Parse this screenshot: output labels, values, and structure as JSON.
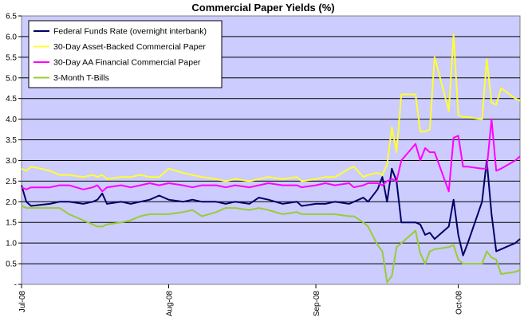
{
  "chart_data": {
    "type": "line",
    "title": "Commercial Paper Yields (%)",
    "xlabel": "",
    "ylabel": "",
    "ylim": [
      0,
      6.5
    ],
    "yticks": [
      0,
      0.5,
      1.0,
      1.5,
      2.0,
      2.5,
      3.0,
      3.5,
      4.0,
      4.5,
      5.0,
      5.5,
      6.0,
      6.5
    ],
    "ytick_labels": [
      "-",
      "0.5",
      "1.0",
      "1.5",
      "2.0",
      "2.5",
      "3.0",
      "3.5",
      "4.0",
      "4.5",
      "5.0",
      "5.5",
      "6.0",
      "6.5"
    ],
    "xticks": [
      {
        "date": "2008-07-01",
        "label": "Jul-08"
      },
      {
        "date": "2008-08-01",
        "label": "Aug-08"
      },
      {
        "date": "2008-09-01",
        "label": "Sep-08"
      },
      {
        "date": "2008-10-01",
        "label": "Oct-08"
      }
    ],
    "xlim": [
      "2008-07-01",
      "2008-10-14"
    ],
    "grid": "horizontal",
    "legend_position": "top-left",
    "plot_background": "#ccccff",
    "series": [
      {
        "name": "Federal Funds Rate (overnight interbank)",
        "color": "#000066",
        "points": [
          [
            "2008-07-01",
            2.4
          ],
          [
            "2008-07-02",
            2.0
          ],
          [
            "2008-07-03",
            1.9
          ],
          [
            "2008-07-07",
            1.95
          ],
          [
            "2008-07-09",
            2.0
          ],
          [
            "2008-07-11",
            2.0
          ],
          [
            "2008-07-14",
            1.95
          ],
          [
            "2008-07-16",
            2.0
          ],
          [
            "2008-07-17",
            2.05
          ],
          [
            "2008-07-18",
            2.2
          ],
          [
            "2008-07-19",
            1.95
          ],
          [
            "2008-07-22",
            2.0
          ],
          [
            "2008-07-24",
            1.95
          ],
          [
            "2008-07-26",
            2.0
          ],
          [
            "2008-07-28",
            2.05
          ],
          [
            "2008-07-30",
            2.15
          ],
          [
            "2008-08-01",
            2.05
          ],
          [
            "2008-08-04",
            2.0
          ],
          [
            "2008-08-06",
            2.05
          ],
          [
            "2008-08-08",
            2.0
          ],
          [
            "2008-08-11",
            2.0
          ],
          [
            "2008-08-13",
            1.95
          ],
          [
            "2008-08-15",
            2.0
          ],
          [
            "2008-08-18",
            1.95
          ],
          [
            "2008-08-20",
            2.1
          ],
          [
            "2008-08-22",
            2.05
          ],
          [
            "2008-08-25",
            1.95
          ],
          [
            "2008-08-28",
            2.0
          ],
          [
            "2008-08-29",
            1.9
          ],
          [
            "2008-09-01",
            1.95
          ],
          [
            "2008-09-03",
            1.95
          ],
          [
            "2008-09-05",
            2.0
          ],
          [
            "2008-09-08",
            1.95
          ],
          [
            "2008-09-09",
            2.0
          ],
          [
            "2008-09-11",
            2.1
          ],
          [
            "2008-09-12",
            2.0
          ],
          [
            "2008-09-14",
            2.3
          ],
          [
            "2008-09-15",
            2.6
          ],
          [
            "2008-09-16",
            2.0
          ],
          [
            "2008-09-17",
            2.8
          ],
          [
            "2008-09-18",
            2.5
          ],
          [
            "2008-09-19",
            1.5
          ],
          [
            "2008-09-22",
            1.5
          ],
          [
            "2008-09-23",
            1.45
          ],
          [
            "2008-09-24",
            1.2
          ],
          [
            "2008-09-25",
            1.25
          ],
          [
            "2008-09-26",
            1.1
          ],
          [
            "2008-09-29",
            1.4
          ],
          [
            "2008-09-30",
            2.05
          ],
          [
            "2008-10-01",
            1.2
          ],
          [
            "2008-10-02",
            0.7
          ],
          [
            "2008-10-03",
            1.0
          ],
          [
            "2008-10-06",
            2.0
          ],
          [
            "2008-10-07",
            3.0
          ],
          [
            "2008-10-08",
            1.7
          ],
          [
            "2008-10-09",
            0.8
          ],
          [
            "2008-10-10",
            0.85
          ],
          [
            "2008-10-13",
            1.0
          ],
          [
            "2008-10-14",
            1.1
          ]
        ]
      },
      {
        "name": "30-Day Asset-Backed Commercial Paper",
        "color": "#ffff33",
        "points": [
          [
            "2008-07-01",
            2.8
          ],
          [
            "2008-07-02",
            2.75
          ],
          [
            "2008-07-03",
            2.85
          ],
          [
            "2008-07-07",
            2.75
          ],
          [
            "2008-07-09",
            2.65
          ],
          [
            "2008-07-11",
            2.65
          ],
          [
            "2008-07-14",
            2.6
          ],
          [
            "2008-07-16",
            2.65
          ],
          [
            "2008-07-17",
            2.6
          ],
          [
            "2008-07-18",
            2.65
          ],
          [
            "2008-07-19",
            2.55
          ],
          [
            "2008-07-22",
            2.6
          ],
          [
            "2008-07-24",
            2.6
          ],
          [
            "2008-07-26",
            2.65
          ],
          [
            "2008-07-28",
            2.6
          ],
          [
            "2008-07-30",
            2.6
          ],
          [
            "2008-08-01",
            2.8
          ],
          [
            "2008-08-04",
            2.7
          ],
          [
            "2008-08-06",
            2.65
          ],
          [
            "2008-08-08",
            2.6
          ],
          [
            "2008-08-11",
            2.55
          ],
          [
            "2008-08-13",
            2.5
          ],
          [
            "2008-08-15",
            2.55
          ],
          [
            "2008-08-18",
            2.5
          ],
          [
            "2008-08-20",
            2.55
          ],
          [
            "2008-08-22",
            2.6
          ],
          [
            "2008-08-25",
            2.55
          ],
          [
            "2008-08-28",
            2.6
          ],
          [
            "2008-08-29",
            2.5
          ],
          [
            "2008-09-01",
            2.55
          ],
          [
            "2008-09-03",
            2.6
          ],
          [
            "2008-09-05",
            2.6
          ],
          [
            "2008-09-08",
            2.8
          ],
          [
            "2008-09-09",
            2.85
          ],
          [
            "2008-09-11",
            2.6
          ],
          [
            "2008-09-12",
            2.65
          ],
          [
            "2008-09-14",
            2.7
          ],
          [
            "2008-09-15",
            2.65
          ],
          [
            "2008-09-16",
            2.9
          ],
          [
            "2008-09-17",
            3.8
          ],
          [
            "2008-09-18",
            3.2
          ],
          [
            "2008-09-19",
            4.6
          ],
          [
            "2008-09-22",
            4.6
          ],
          [
            "2008-09-23",
            3.7
          ],
          [
            "2008-09-24",
            3.7
          ],
          [
            "2008-09-25",
            3.75
          ],
          [
            "2008-09-26",
            5.5
          ],
          [
            "2008-09-29",
            4.2
          ],
          [
            "2008-09-30",
            6.05
          ],
          [
            "2008-10-01",
            4.1
          ],
          [
            "2008-10-02",
            4.05
          ],
          [
            "2008-10-03",
            4.05
          ],
          [
            "2008-10-06",
            4.0
          ],
          [
            "2008-10-07",
            5.45
          ],
          [
            "2008-10-08",
            4.4
          ],
          [
            "2008-10-09",
            4.35
          ],
          [
            "2008-10-10",
            4.75
          ],
          [
            "2008-10-13",
            4.5
          ],
          [
            "2008-10-14",
            4.45
          ]
        ]
      },
      {
        "name": "30-Day AA Financial Commercial Paper",
        "color": "#ff00ff",
        "points": [
          [
            "2008-07-01",
            2.35
          ],
          [
            "2008-07-02",
            2.3
          ],
          [
            "2008-07-03",
            2.35
          ],
          [
            "2008-07-07",
            2.35
          ],
          [
            "2008-07-09",
            2.4
          ],
          [
            "2008-07-11",
            2.4
          ],
          [
            "2008-07-14",
            2.3
          ],
          [
            "2008-07-16",
            2.35
          ],
          [
            "2008-07-17",
            2.4
          ],
          [
            "2008-07-18",
            2.25
          ],
          [
            "2008-07-19",
            2.35
          ],
          [
            "2008-07-22",
            2.4
          ],
          [
            "2008-07-24",
            2.35
          ],
          [
            "2008-07-26",
            2.4
          ],
          [
            "2008-07-28",
            2.45
          ],
          [
            "2008-07-30",
            2.4
          ],
          [
            "2008-08-01",
            2.45
          ],
          [
            "2008-08-04",
            2.4
          ],
          [
            "2008-08-06",
            2.35
          ],
          [
            "2008-08-08",
            2.4
          ],
          [
            "2008-08-11",
            2.4
          ],
          [
            "2008-08-13",
            2.35
          ],
          [
            "2008-08-15",
            2.4
          ],
          [
            "2008-08-18",
            2.35
          ],
          [
            "2008-08-20",
            2.4
          ],
          [
            "2008-08-22",
            2.45
          ],
          [
            "2008-08-25",
            2.4
          ],
          [
            "2008-08-28",
            2.4
          ],
          [
            "2008-08-29",
            2.35
          ],
          [
            "2008-09-01",
            2.4
          ],
          [
            "2008-09-03",
            2.45
          ],
          [
            "2008-09-05",
            2.4
          ],
          [
            "2008-09-08",
            2.45
          ],
          [
            "2008-09-09",
            2.35
          ],
          [
            "2008-09-11",
            2.4
          ],
          [
            "2008-09-12",
            2.45
          ],
          [
            "2008-09-14",
            2.45
          ],
          [
            "2008-09-15",
            2.4
          ],
          [
            "2008-09-16",
            2.5
          ],
          [
            "2008-09-17",
            2.55
          ],
          [
            "2008-09-18",
            2.5
          ],
          [
            "2008-09-19",
            3.0
          ],
          [
            "2008-09-22",
            3.4
          ],
          [
            "2008-09-23",
            3.0
          ],
          [
            "2008-09-24",
            3.3
          ],
          [
            "2008-09-25",
            3.2
          ],
          [
            "2008-09-26",
            3.2
          ],
          [
            "2008-09-29",
            2.25
          ],
          [
            "2008-09-30",
            3.55
          ],
          [
            "2008-10-01",
            3.6
          ],
          [
            "2008-10-02",
            2.85
          ],
          [
            "2008-10-03",
            2.85
          ],
          [
            "2008-10-06",
            2.8
          ],
          [
            "2008-10-07",
            2.8
          ],
          [
            "2008-10-08",
            4.0
          ],
          [
            "2008-10-09",
            2.75
          ],
          [
            "2008-10-10",
            2.8
          ],
          [
            "2008-10-13",
            3.0
          ],
          [
            "2008-10-14",
            3.1
          ]
        ]
      },
      {
        "name": "3-Month T-Bills",
        "color": "#99cc33",
        "points": [
          [
            "2008-07-01",
            1.9
          ],
          [
            "2008-07-02",
            1.85
          ],
          [
            "2008-07-03",
            1.85
          ],
          [
            "2008-07-07",
            1.85
          ],
          [
            "2008-07-09",
            1.85
          ],
          [
            "2008-07-11",
            1.7
          ],
          [
            "2008-07-14",
            1.55
          ],
          [
            "2008-07-16",
            1.45
          ],
          [
            "2008-07-17",
            1.4
          ],
          [
            "2008-07-18",
            1.4
          ],
          [
            "2008-07-19",
            1.45
          ],
          [
            "2008-07-22",
            1.5
          ],
          [
            "2008-07-24",
            1.55
          ],
          [
            "2008-07-26",
            1.65
          ],
          [
            "2008-07-28",
            1.7
          ],
          [
            "2008-07-30",
            1.7
          ],
          [
            "2008-08-01",
            1.7
          ],
          [
            "2008-08-04",
            1.75
          ],
          [
            "2008-08-06",
            1.8
          ],
          [
            "2008-08-08",
            1.65
          ],
          [
            "2008-08-11",
            1.75
          ],
          [
            "2008-08-13",
            1.85
          ],
          [
            "2008-08-15",
            1.85
          ],
          [
            "2008-08-18",
            1.8
          ],
          [
            "2008-08-20",
            1.85
          ],
          [
            "2008-08-22",
            1.8
          ],
          [
            "2008-08-25",
            1.7
          ],
          [
            "2008-08-28",
            1.75
          ],
          [
            "2008-08-29",
            1.7
          ],
          [
            "2008-09-01",
            1.7
          ],
          [
            "2008-09-03",
            1.7
          ],
          [
            "2008-09-05",
            1.7
          ],
          [
            "2008-09-08",
            1.65
          ],
          [
            "2008-09-09",
            1.65
          ],
          [
            "2008-09-11",
            1.5
          ],
          [
            "2008-09-12",
            1.4
          ],
          [
            "2008-09-14",
            0.95
          ],
          [
            "2008-09-15",
            0.8
          ],
          [
            "2008-09-16",
            0.05
          ],
          [
            "2008-09-17",
            0.2
          ],
          [
            "2008-09-18",
            0.9
          ],
          [
            "2008-09-19",
            1.0
          ],
          [
            "2008-09-22",
            1.3
          ],
          [
            "2008-09-23",
            0.75
          ],
          [
            "2008-09-24",
            0.5
          ],
          [
            "2008-09-25",
            0.8
          ],
          [
            "2008-09-26",
            0.85
          ],
          [
            "2008-09-29",
            0.9
          ],
          [
            "2008-09-30",
            0.95
          ],
          [
            "2008-10-01",
            0.6
          ],
          [
            "2008-10-02",
            0.5
          ],
          [
            "2008-10-03",
            0.5
          ],
          [
            "2008-10-06",
            0.5
          ],
          [
            "2008-10-07",
            0.8
          ],
          [
            "2008-10-08",
            0.65
          ],
          [
            "2008-10-09",
            0.6
          ],
          [
            "2008-10-10",
            0.25
          ],
          [
            "2008-10-13",
            0.3
          ],
          [
            "2008-10-14",
            0.35
          ]
        ]
      }
    ]
  }
}
